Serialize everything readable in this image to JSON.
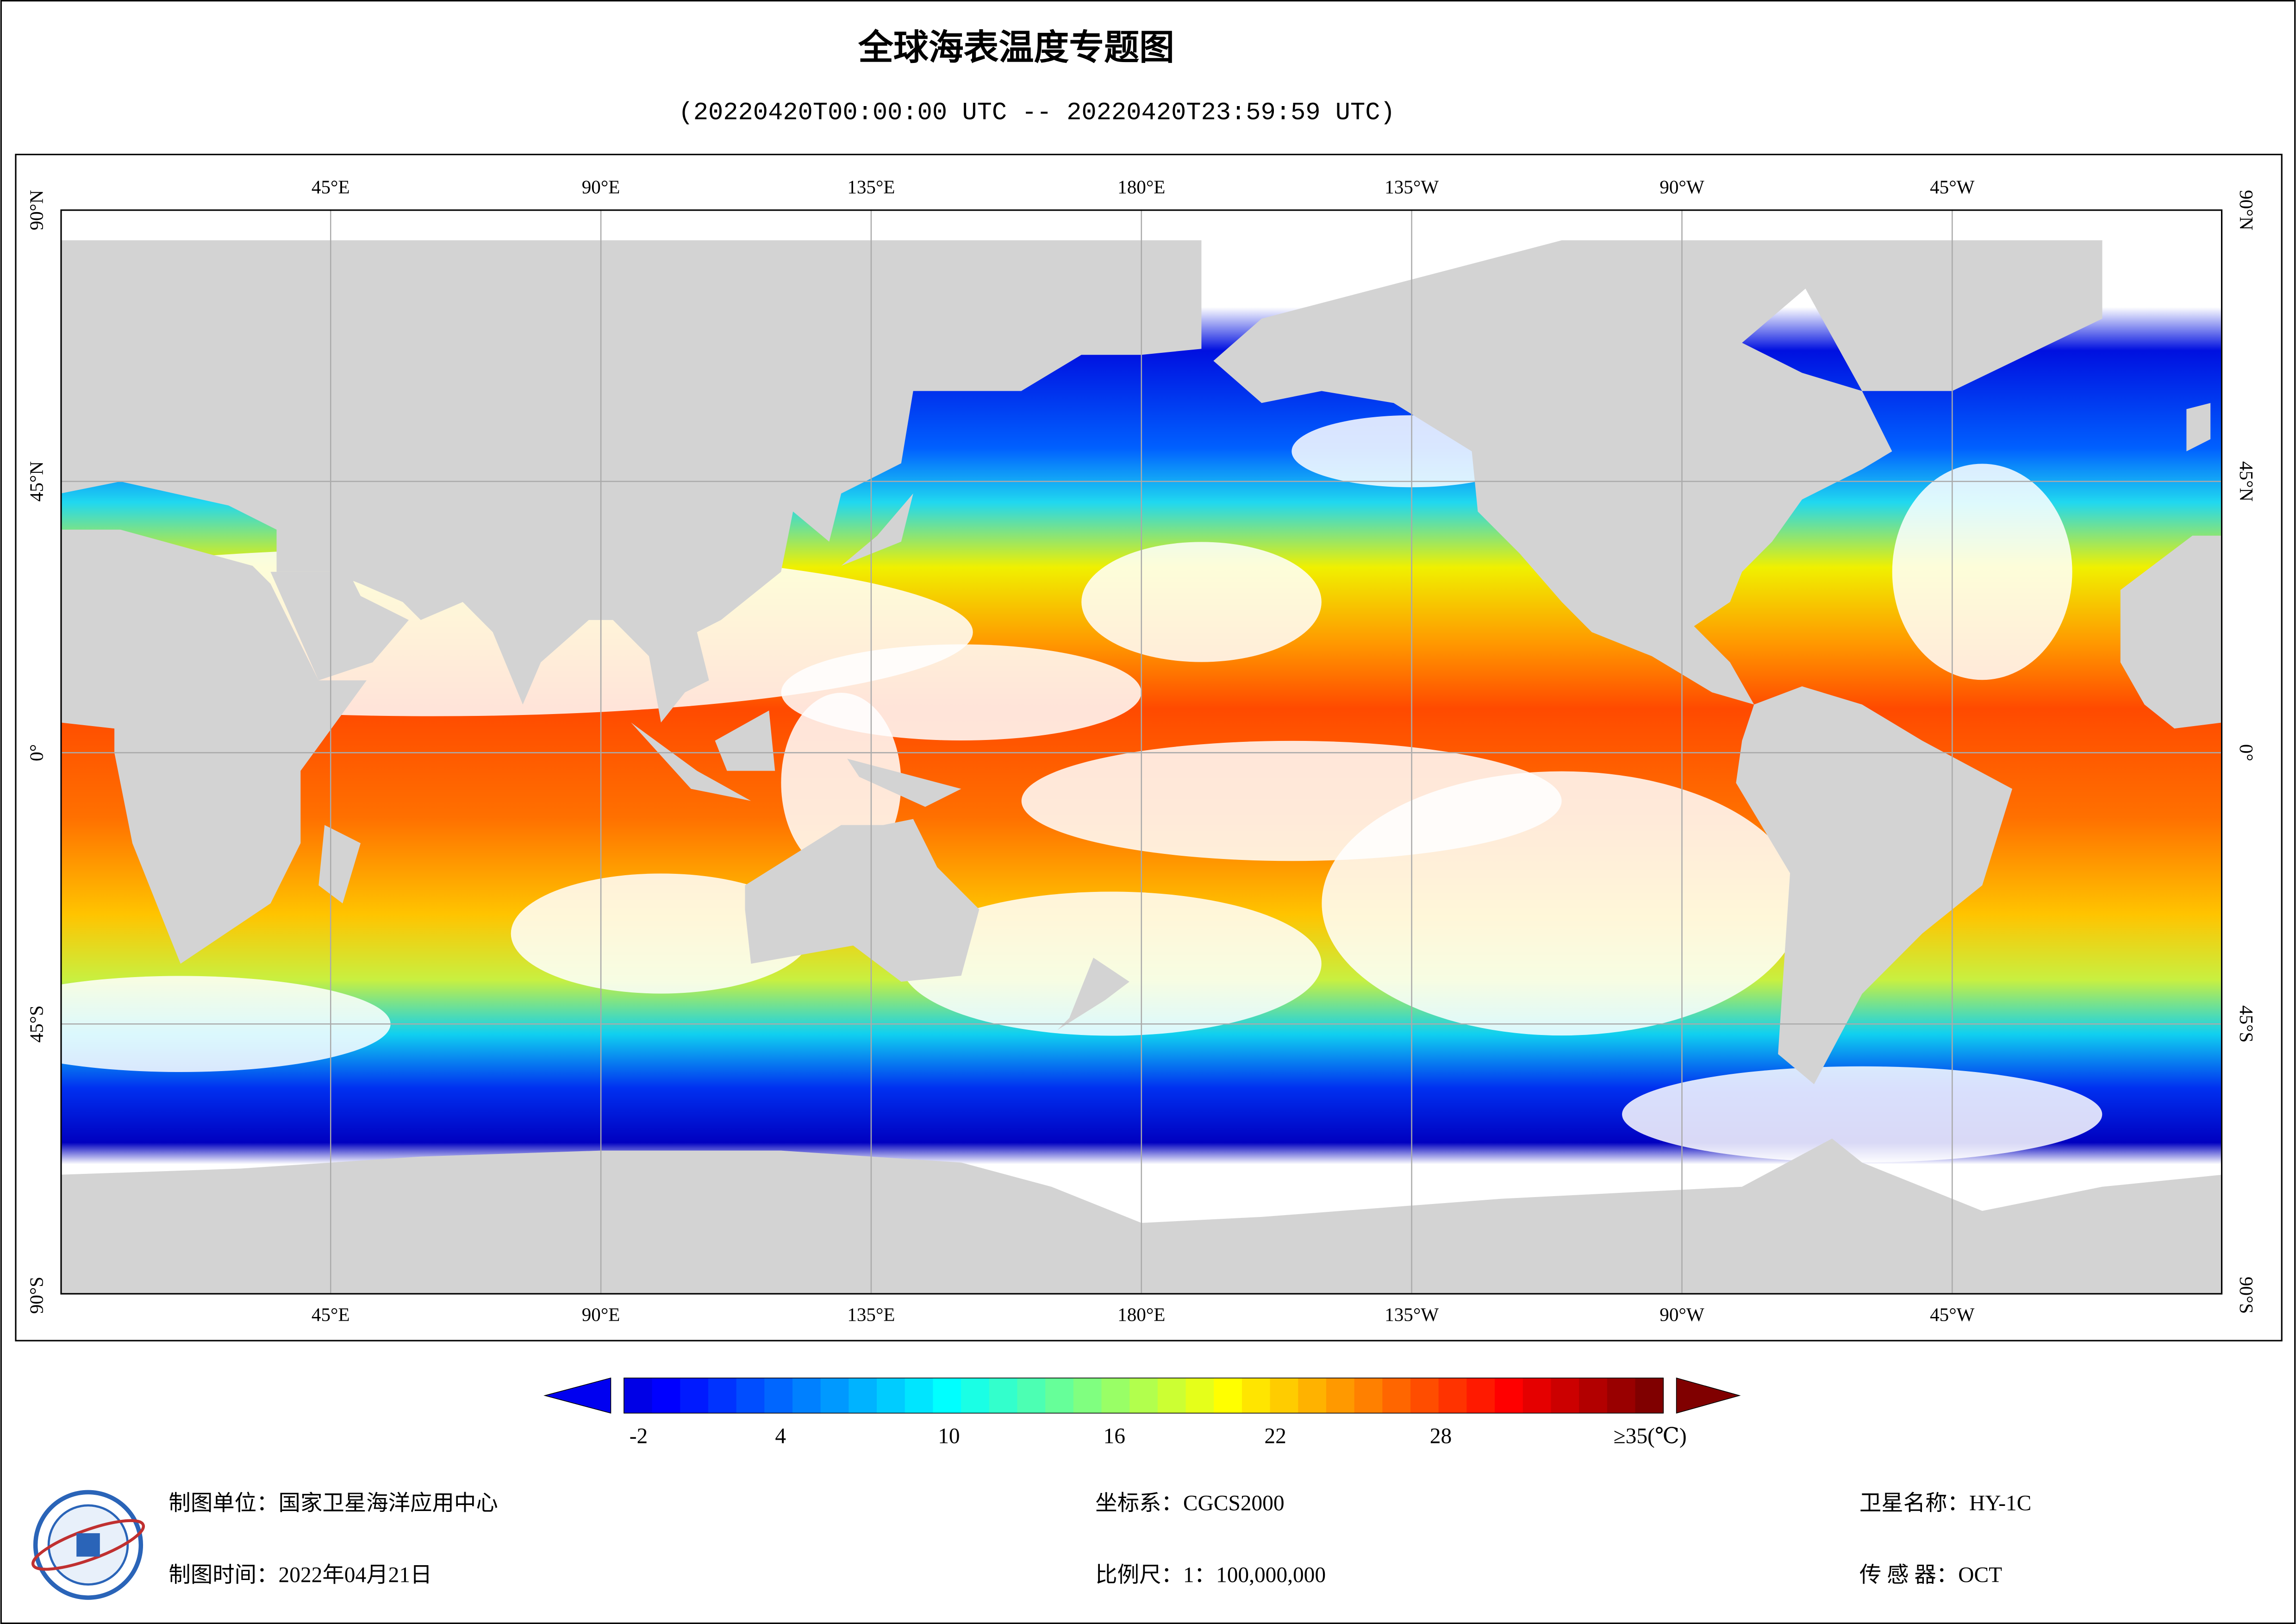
{
  "title": "全球海表温度专题图",
  "subtitle": "(20220420T00:00:00 UTC -- 20220420T23:59:59 UTC)",
  "map": {
    "lon_labels": [
      "45°E",
      "90°E",
      "135°E",
      "180°E",
      "135°W",
      "90°W",
      "45°W"
    ],
    "lat_labels": [
      "90°N",
      "45°N",
      "0°",
      "45°S",
      "90°S"
    ]
  },
  "colorbar": {
    "labels": [
      "-2",
      "4",
      "10",
      "16",
      "22",
      "28",
      "≥35(℃)"
    ]
  },
  "footer": {
    "left": [
      "制图单位：国家卫星海洋应用中心",
      "制图时间：2022年04月21日"
    ],
    "middle": [
      "坐标系：CGCS2000",
      "比例尺：1：100,000,000"
    ],
    "right": [
      "卫星名称：HY-1C",
      "传 感 器：OCT"
    ]
  }
}
